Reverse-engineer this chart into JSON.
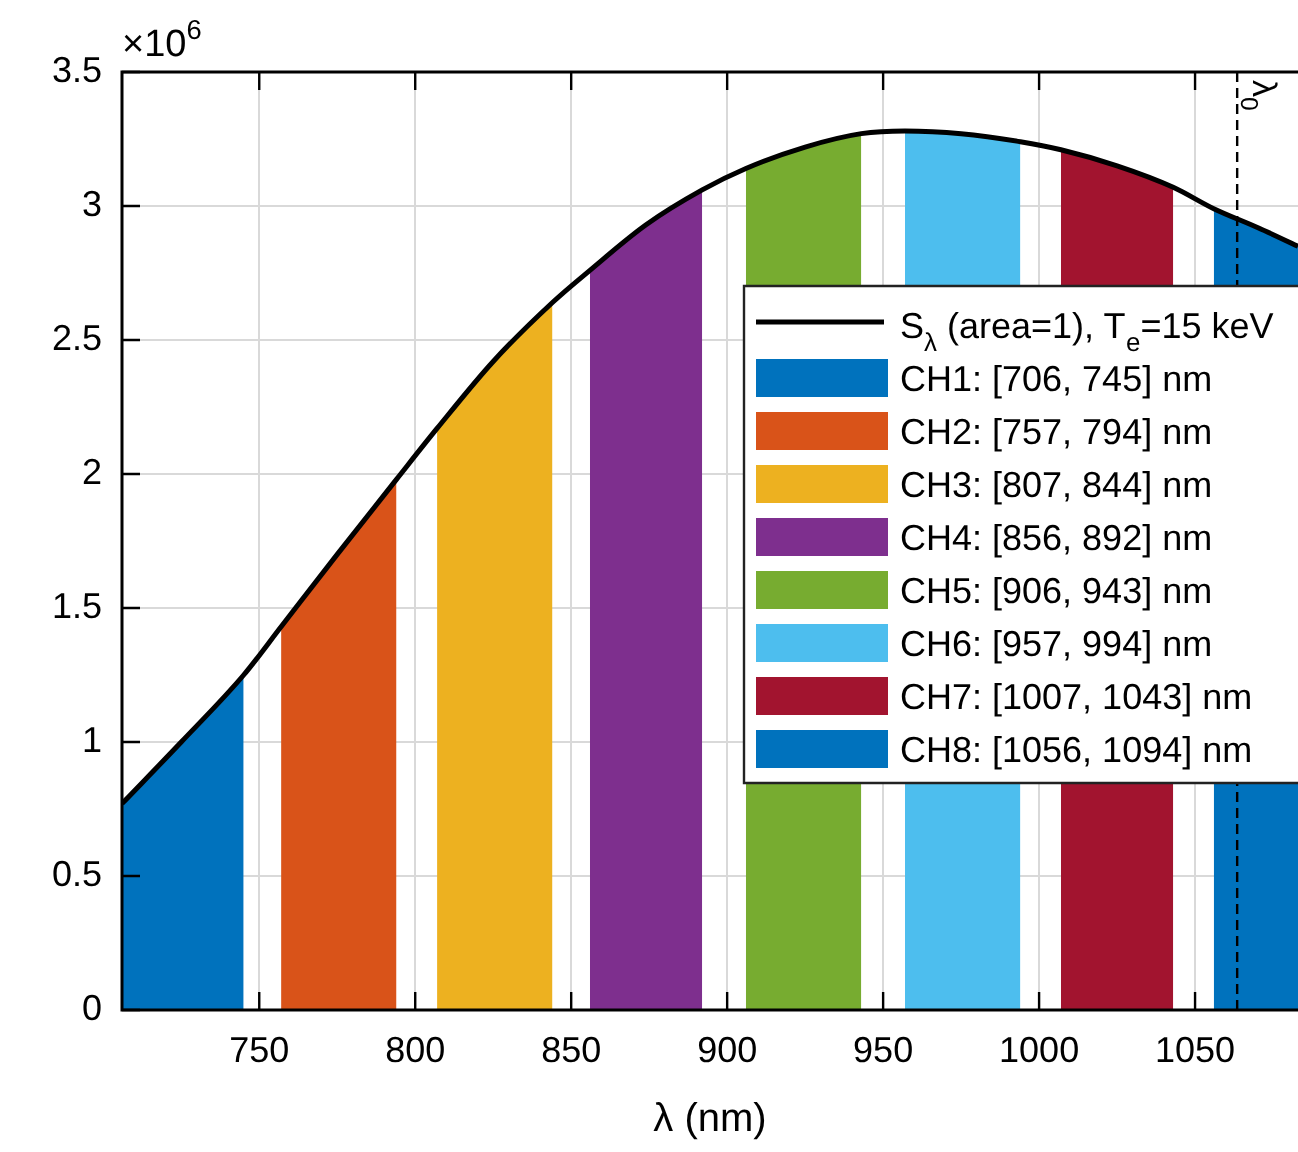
{
  "chart_data": {
    "type": "area",
    "xlabel": "λ (nm)",
    "xlim": [
      706,
      1083
    ],
    "xticks": [
      750,
      800,
      850,
      900,
      950,
      1000,
      1050
    ],
    "ylim": [
      0,
      3.5
    ],
    "yticks": [
      0,
      0.5,
      1,
      1.5,
      2,
      2.5,
      3,
      3.5
    ],
    "grid": true,
    "legend": "right",
    "annotations": [
      "×10$^{6}$"
    ],
    "ref_lines": [
      {
        "axis": "x",
        "value": 1063.5,
        "label": "λ$_{0}$",
        "line_style": "dashed",
        "color": "#000000"
      }
    ],
    "series": [
      {
        "type": "line",
        "name": "S$_{λ}$ (area=1), T$_{e}$=15 keV",
        "color": "#000000",
        "x": [
          706,
          725,
          745,
          757,
          775,
          794,
          807,
          825,
          844,
          856,
          874,
          892,
          906,
          925,
          943,
          957,
          975,
          994,
          1007,
          1025,
          1043,
          1056,
          1070,
          1083
        ],
        "values": [
          0.77,
          1.0,
          1.25,
          1.43,
          1.7,
          1.98,
          2.17,
          2.42,
          2.64,
          2.76,
          2.93,
          3.06,
          3.14,
          3.22,
          3.27,
          3.28,
          3.27,
          3.24,
          3.21,
          3.15,
          3.07,
          2.99,
          2.92,
          2.85
        ]
      },
      {
        "name": "CH1: [706, 745] nm",
        "color": "#0072bd",
        "x": [
          706,
          725,
          745
        ],
        "values": [
          0.77,
          1.0,
          1.25
        ]
      },
      {
        "name": "CH2: [757, 794] nm",
        "color": "#d95319",
        "x": [
          757,
          775,
          794
        ],
        "values": [
          1.43,
          1.7,
          1.98
        ]
      },
      {
        "name": "CH3: [807, 844] nm",
        "color": "#edb120",
        "x": [
          807,
          825,
          844
        ],
        "values": [
          2.17,
          2.42,
          2.64
        ]
      },
      {
        "name": "CH4: [856, 892] nm",
        "color": "#7e2f8e",
        "x": [
          856,
          874,
          892
        ],
        "values": [
          2.76,
          2.93,
          3.06
        ]
      },
      {
        "name": "CH5: [906, 943] nm",
        "color": "#77ac30",
        "x": [
          906,
          925,
          943
        ],
        "values": [
          3.14,
          3.22,
          3.27
        ]
      },
      {
        "name": "CH6: [957, 994] nm",
        "color": "#4dbeee",
        "x": [
          957,
          975,
          994
        ],
        "values": [
          3.28,
          3.27,
          3.24
        ]
      },
      {
        "name": "CH7: [1007, 1043] nm",
        "color": "#a2142f",
        "x": [
          1007,
          1025,
          1043
        ],
        "values": [
          3.21,
          3.15,
          3.07
        ]
      },
      {
        "name": "CH8: [1056, 1094] nm",
        "color": "#0072bd",
        "x": [
          1056,
          1070,
          1083
        ],
        "values": [
          2.99,
          2.92,
          2.85
        ]
      }
    ]
  }
}
